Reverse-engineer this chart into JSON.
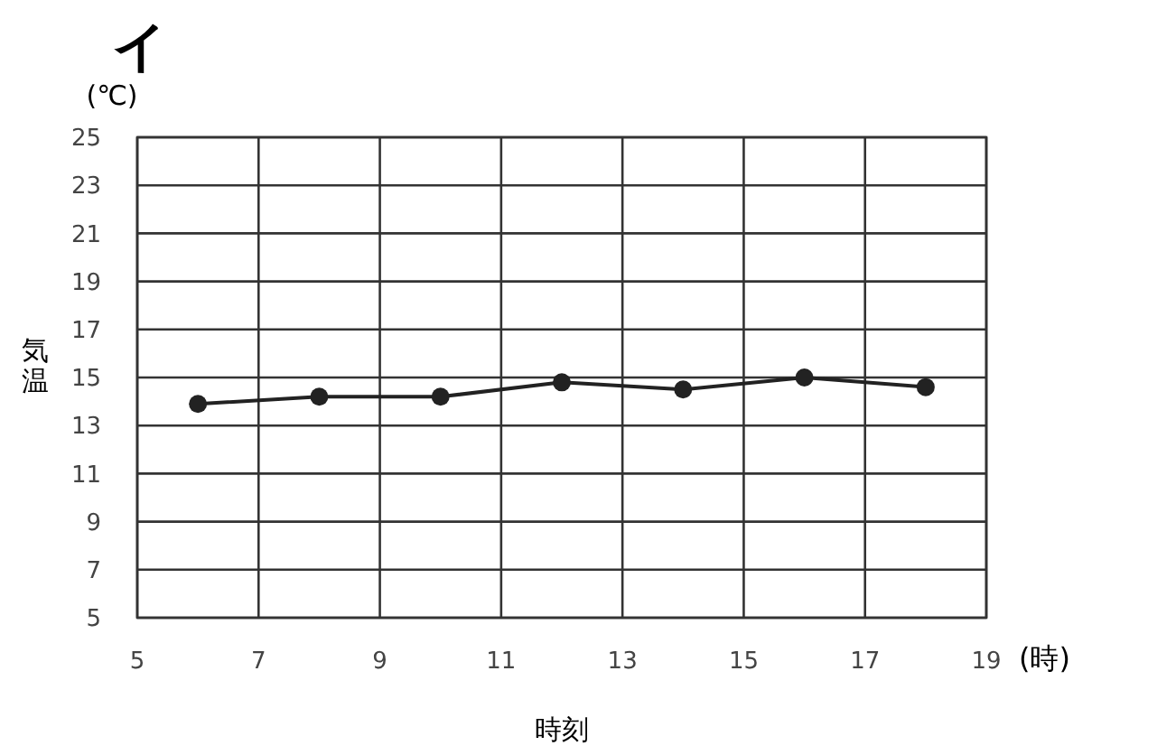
{
  "chart_data": {
    "type": "line",
    "title": "イ",
    "xlabel": "時刻",
    "ylabel": "気温",
    "annotations": [
      "(℃)",
      "(時)"
    ],
    "x": [
      6,
      8,
      10,
      12,
      14,
      16,
      18
    ],
    "series": [
      {
        "color": "#222222",
        "values": [
          13.9,
          14.2,
          14.2,
          14.8,
          14.5,
          15.0,
          14.6
        ]
      }
    ],
    "xlim": [
      5,
      19
    ],
    "xticks": [
      5,
      7,
      9,
      11,
      13,
      15,
      17,
      19
    ],
    "ylim": [
      5,
      25
    ],
    "yticks": [
      5,
      7,
      9,
      11,
      13,
      15,
      17,
      19,
      21,
      23,
      25
    ],
    "grid": true,
    "marker": "circle",
    "line_style": "solid"
  }
}
